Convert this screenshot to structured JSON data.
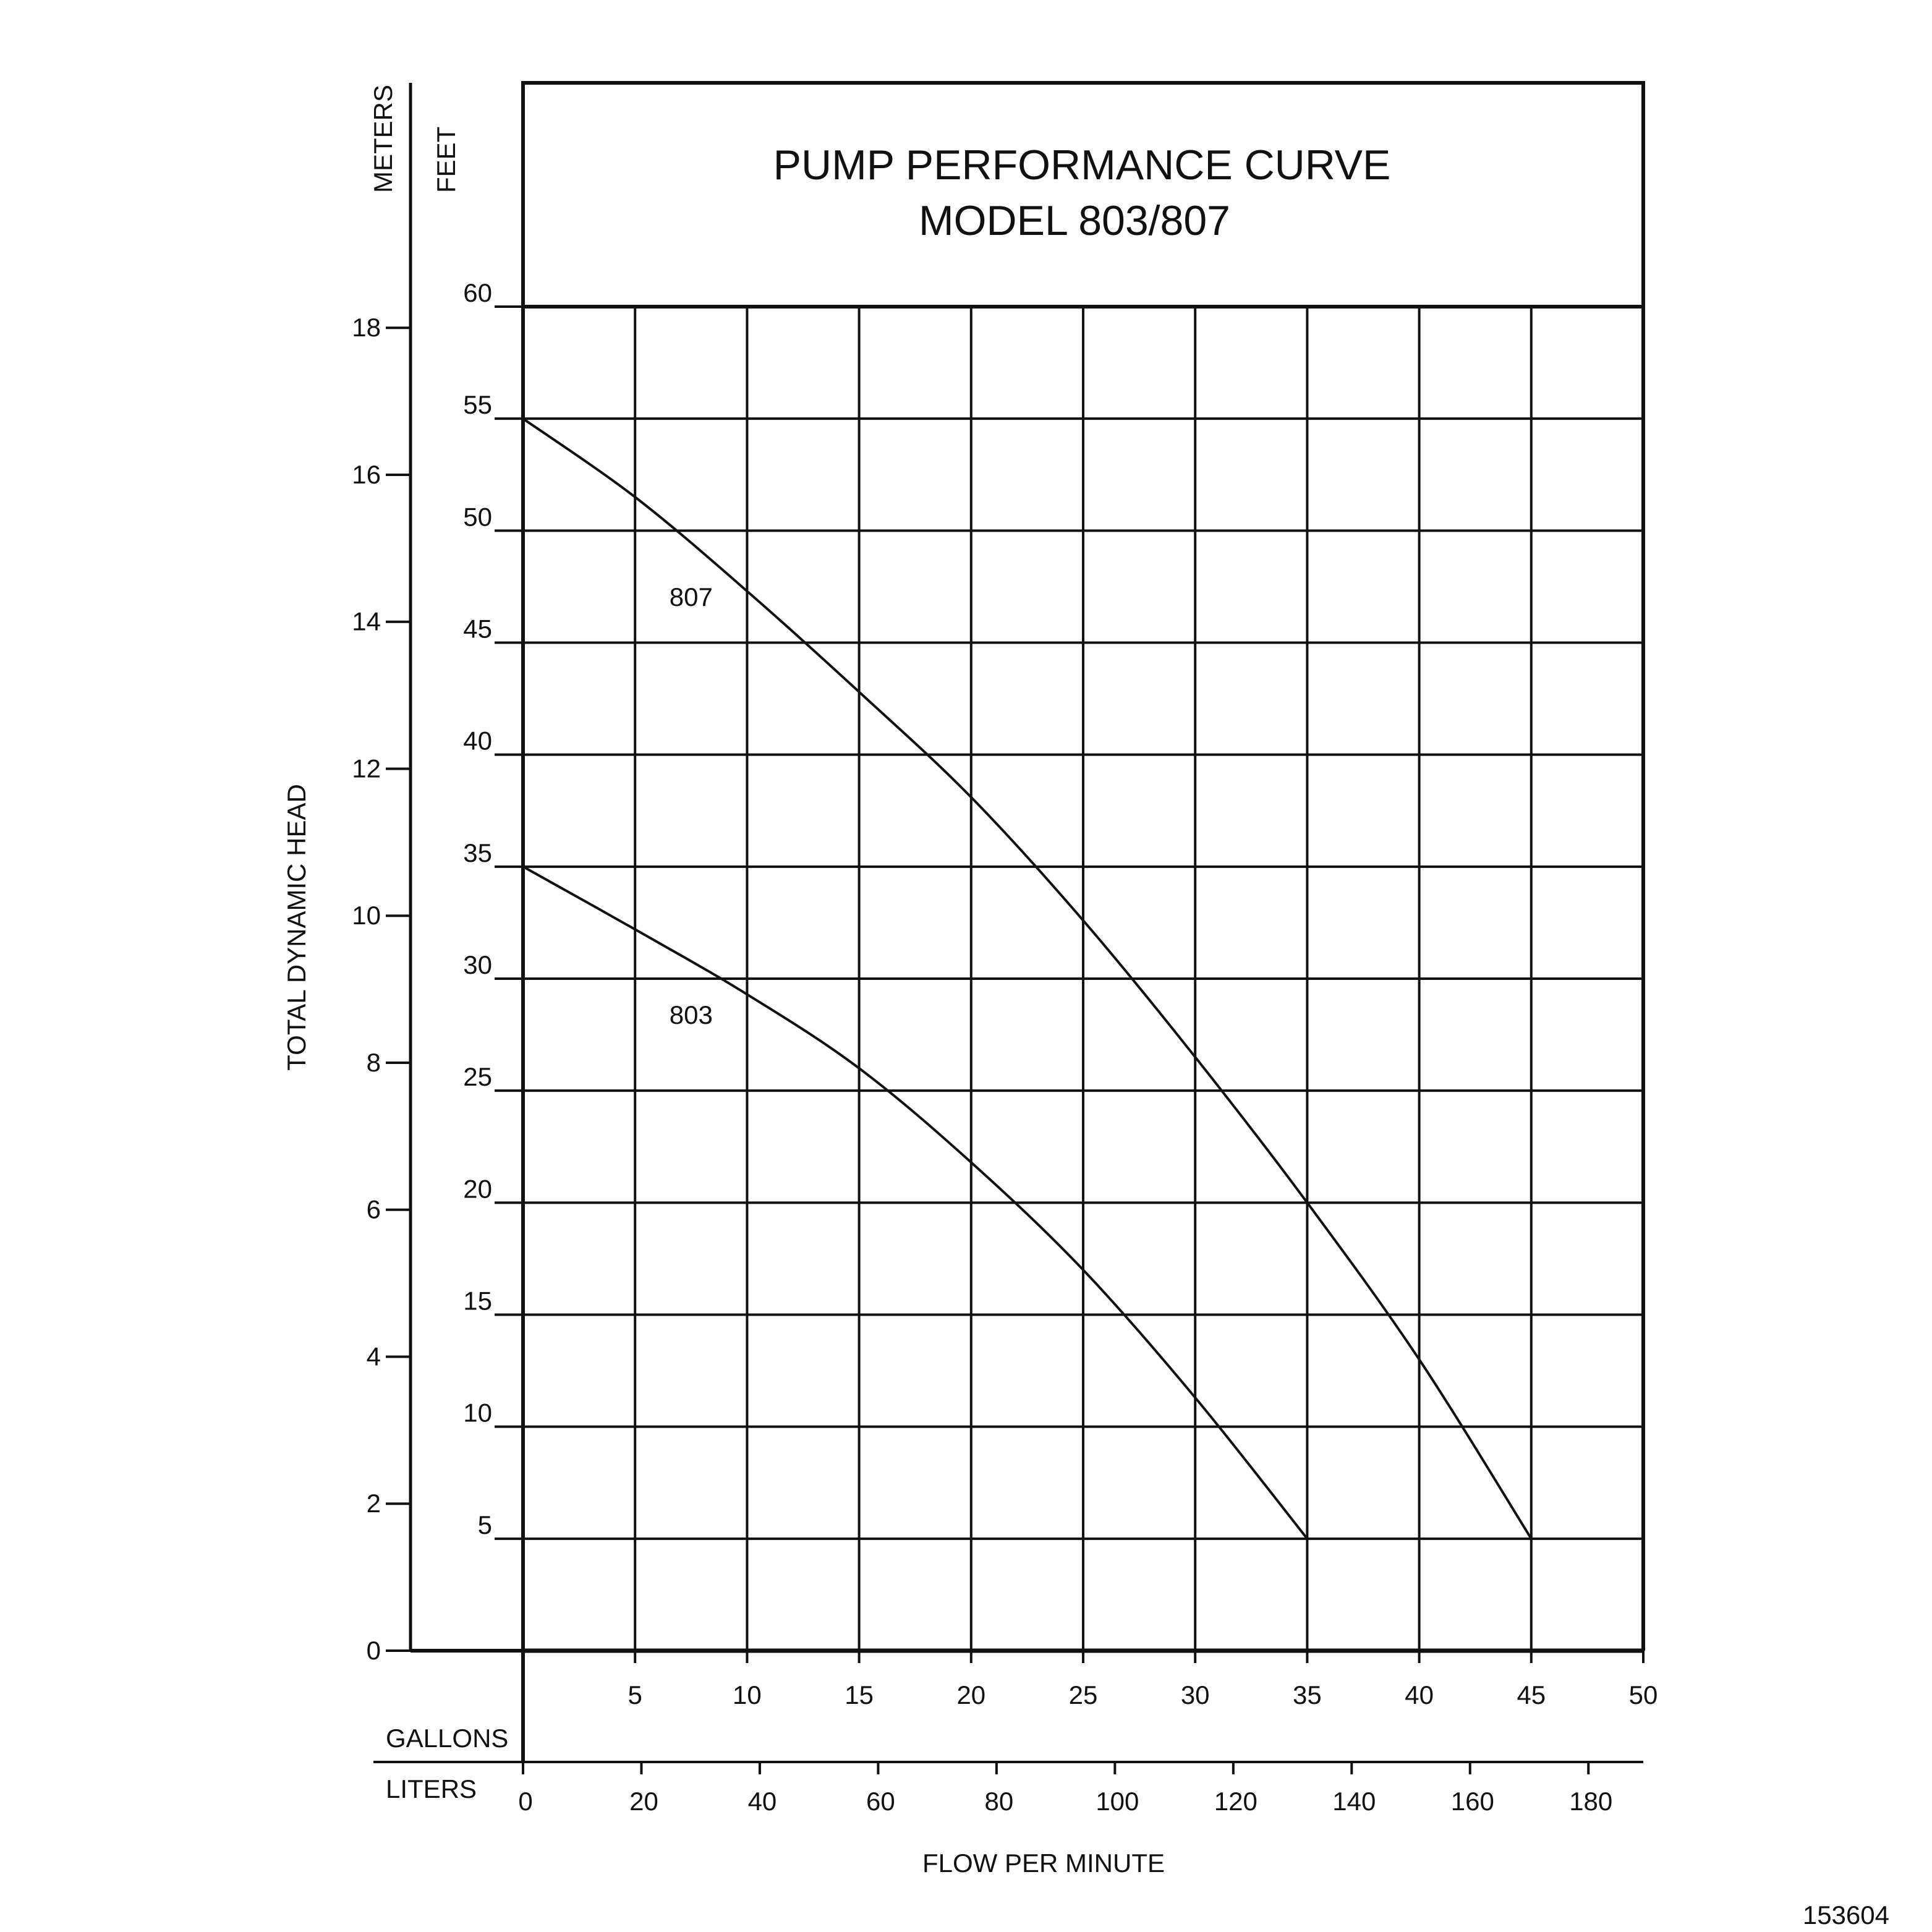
{
  "chart_data": {
    "type": "line",
    "title": "PUMP PERFORMANCE CURVE",
    "subtitle": "MODEL 803/807",
    "ylabel": "TOTAL DYNAMIC HEAD",
    "xlabel": "FLOW PER MINUTE",
    "y_units": {
      "feet": "FEET",
      "meters": "METERS"
    },
    "x_units": {
      "gallons": "GALLONS",
      "liters": "LITERS"
    },
    "ylim_feet": [
      0,
      60
    ],
    "xlim_gallons": [
      0,
      50
    ],
    "grid": true,
    "y_ticks_feet": [
      "5",
      "10",
      "15",
      "20",
      "25",
      "30",
      "35",
      "40",
      "45",
      "50",
      "55",
      "60"
    ],
    "y_ticks_meters": [
      "0",
      "2",
      "4",
      "6",
      "8",
      "10",
      "12",
      "14",
      "16",
      "18"
    ],
    "x_ticks_gallons": [
      "5",
      "10",
      "15",
      "20",
      "25",
      "30",
      "35",
      "40",
      "45",
      "50"
    ],
    "x_ticks_liters": [
      "0",
      "20",
      "40",
      "60",
      "80",
      "100",
      "120",
      "140",
      "160",
      "180"
    ],
    "series": [
      {
        "name": "807",
        "x": [
          0,
          5,
          10,
          15,
          20,
          25,
          30,
          35,
          40,
          45
        ],
        "y": [
          55,
          51.5,
          47.3,
          42.8,
          38.1,
          32.6,
          26.5,
          20,
          13,
          5
        ]
      },
      {
        "name": "803",
        "x": [
          0,
          5,
          10,
          15,
          20,
          25,
          30,
          35
        ],
        "y": [
          35,
          32.2,
          29.3,
          26,
          21.8,
          17,
          11.3,
          5
        ]
      }
    ]
  },
  "figure_id": "153604"
}
